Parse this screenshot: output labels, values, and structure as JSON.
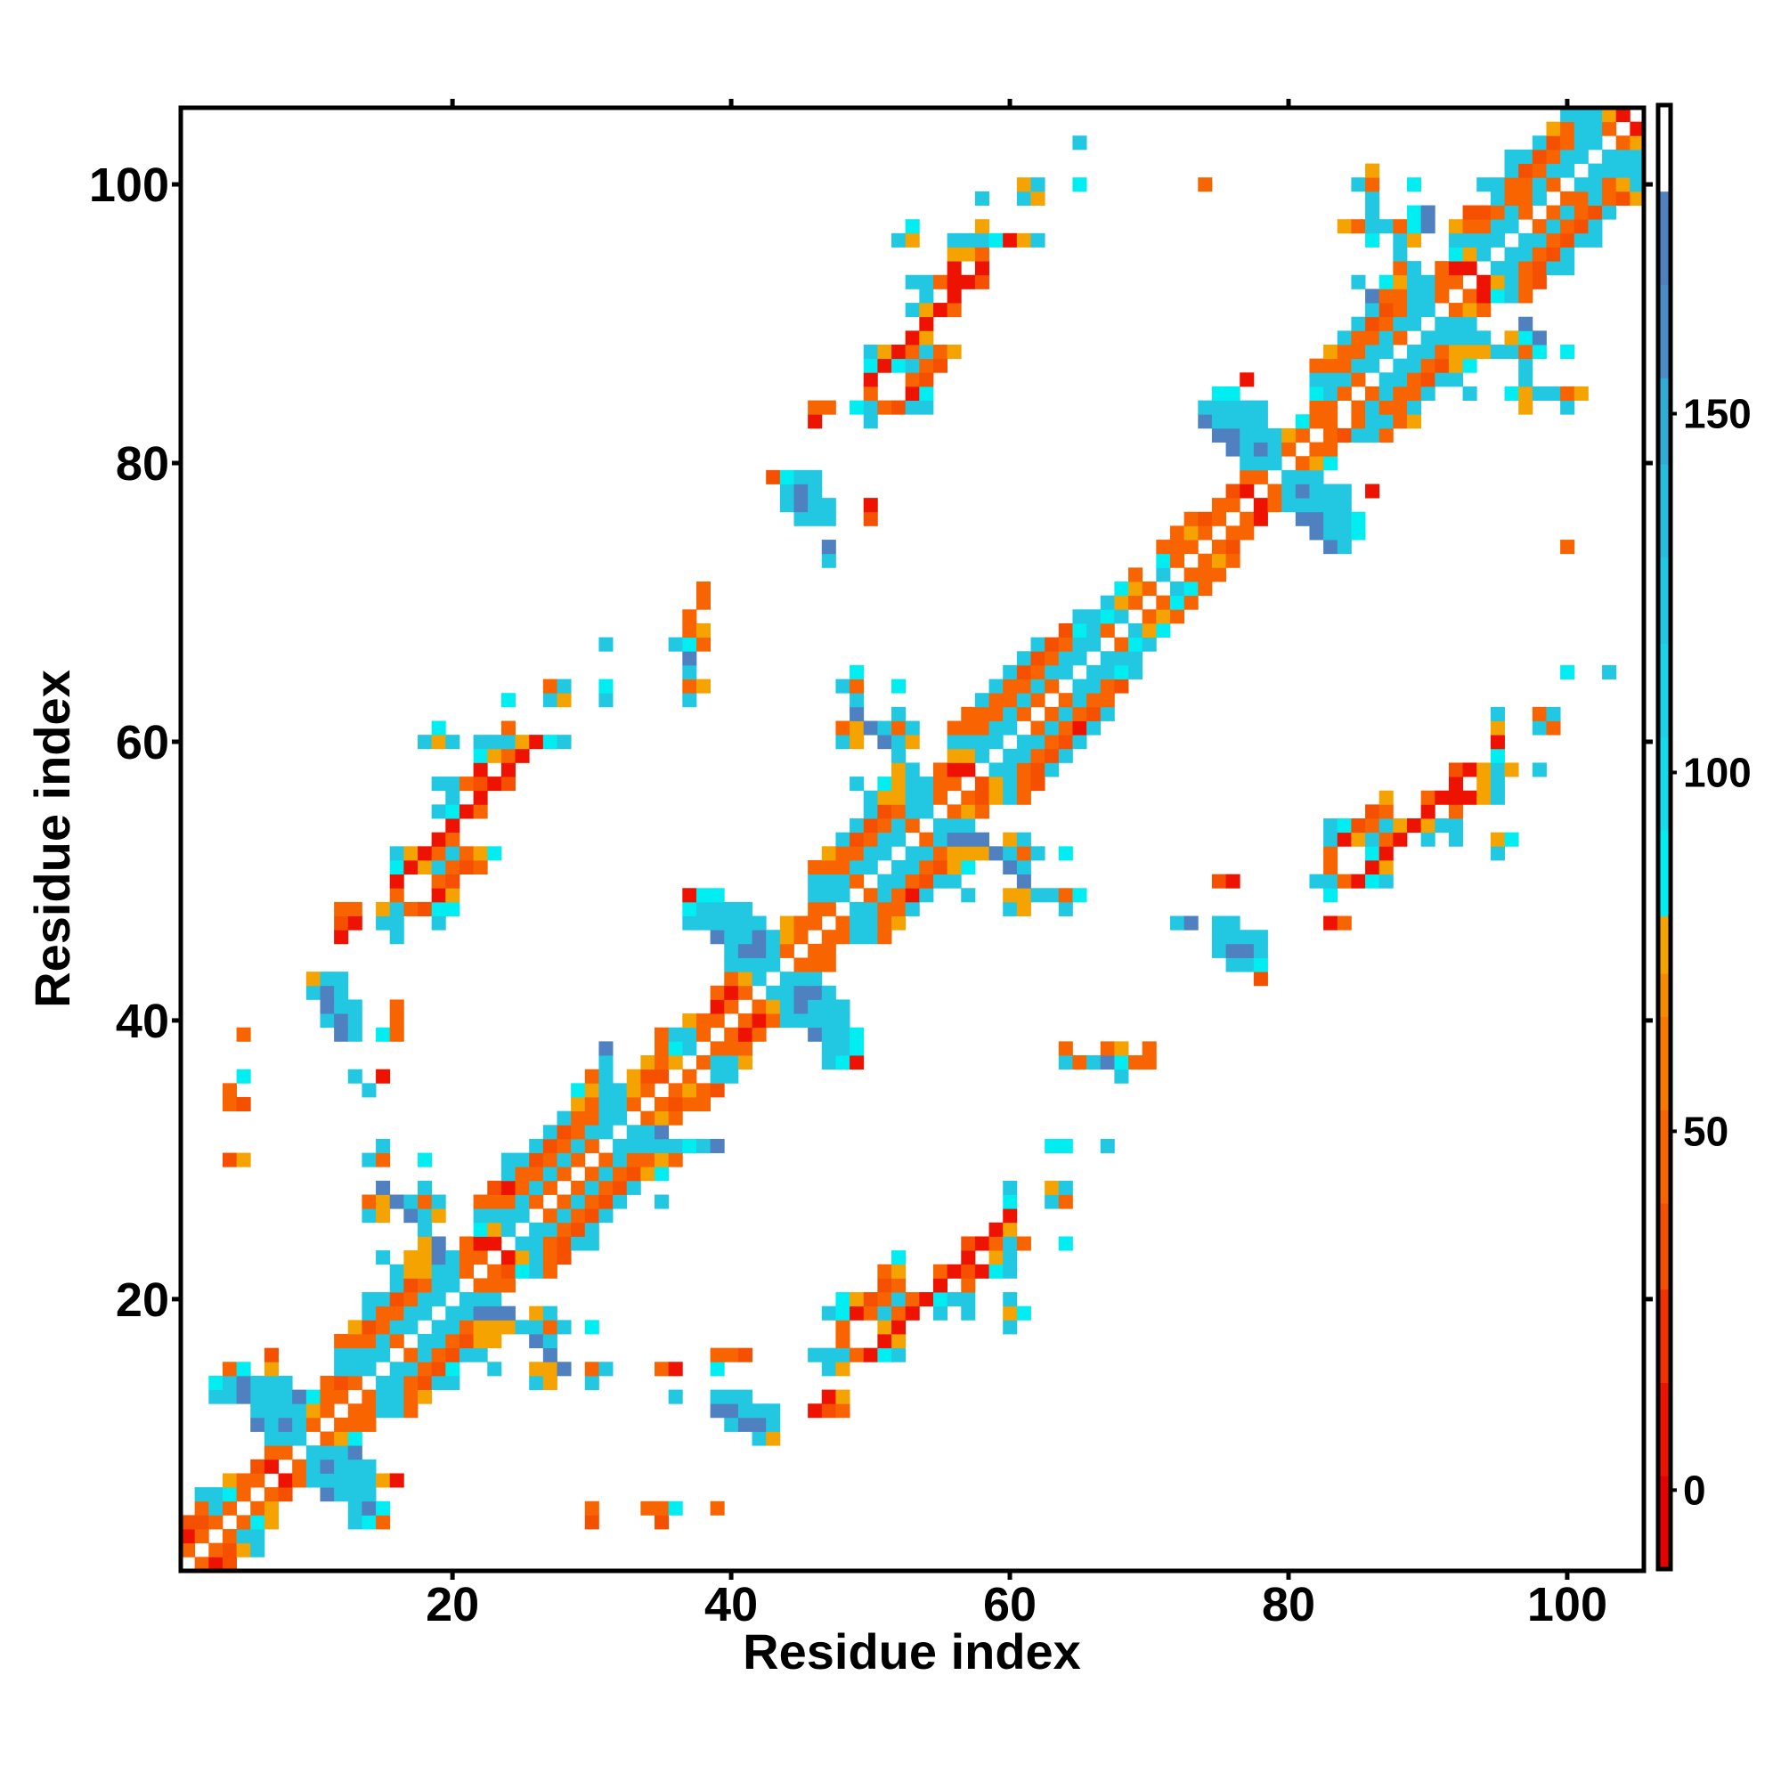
{
  "chart_data": {
    "type": "heatmap",
    "title": "",
    "xlabel": "Residue index",
    "ylabel": "Residue index",
    "xlim": [
      0.5,
      105.5
    ],
    "ylim": [
      0.5,
      105.5
    ],
    "n": 105,
    "grid": false,
    "x_ticks": [
      20,
      40,
      60,
      80,
      100
    ],
    "y_ticks": [
      20,
      40,
      60,
      80,
      100
    ],
    "colorbar": {
      "placement": "right",
      "ticks": [
        0,
        50,
        100,
        150
      ],
      "range": [
        -11,
        193
      ],
      "bins": [
        [
          -11,
          "#e60000"
        ],
        [
          2,
          "#ee1200"
        ],
        [
          15,
          "#f23000"
        ],
        [
          28,
          "#f55000"
        ],
        [
          40,
          "#f86400"
        ],
        [
          53,
          "#f87800"
        ],
        [
          66,
          "#f58c00"
        ],
        [
          72,
          "#f5a300"
        ],
        [
          80,
          "#00eef2"
        ],
        [
          92,
          "#14dcea"
        ],
        [
          105,
          "#1cd2e6"
        ],
        [
          118,
          "#22c8e2"
        ],
        [
          130,
          "#28bcde"
        ],
        [
          143,
          "#30acd6"
        ],
        [
          155,
          "#4a8cc6"
        ],
        [
          168,
          "#4f80bf"
        ],
        [
          181,
          "#ffffff"
        ]
      ]
    },
    "value_codes": {
      "r": 5,
      "R": 30,
      "o": 48,
      "y": 75,
      "c": 85,
      "b": 120,
      "s": 172
    },
    "cells_format": "[row, start_column, codes] - each code char is one consecutive column, '.' = empty",
    "cells": [
      [
        1,
        2,
        "orR"
      ],
      [
        2,
        1,
        "o.oRyb"
      ],
      [
        3,
        1,
        "ro.obb"
      ],
      [
        4,
        1,
        "RRo.ocy"
      ],
      [
        4,
        13,
        "bco"
      ],
      [
        4,
        30,
        "R"
      ],
      [
        4,
        35,
        "R"
      ],
      [
        5,
        2,
        "obo.oy"
      ],
      [
        5,
        13,
        "bsc"
      ],
      [
        5,
        30,
        "o"
      ],
      [
        5,
        34,
        "ooc"
      ],
      [
        5,
        39,
        "o"
      ],
      [
        6,
        2,
        "bbco.oR"
      ],
      [
        6,
        11,
        "sbbb"
      ],
      [
        7,
        4,
        "yoo.robbbbbyr"
      ],
      [
        8,
        6,
        "Rr.obsbbb"
      ],
      [
        9,
        7,
        "oo.bbbs"
      ],
      [
        10,
        7,
        "bbb.oyc"
      ],
      [
        10,
        42,
        "by"
      ],
      [
        11,
        6,
        "sbsbo.ooo"
      ],
      [
        11,
        40,
        "bssb"
      ],
      [
        12,
        6,
        "bbbbyo.oobbo"
      ],
      [
        12,
        39,
        "ssbbb"
      ],
      [
        12,
        46,
        "rRo"
      ],
      [
        13,
        3,
        "bbsbbbscoo.obboy"
      ],
      [
        13,
        36,
        "b"
      ],
      [
        13,
        39,
        "bbb"
      ],
      [
        13,
        47,
        "ry"
      ],
      [
        14,
        3,
        "cbsbbb..oRo.bboRbb"
      ],
      [
        14,
        26,
        "by"
      ],
      [
        14,
        30,
        "b"
      ],
      [
        15,
        4,
        "oc.y"
      ],
      [
        15,
        12,
        "bbb.bboRc"
      ],
      [
        15,
        23,
        "b"
      ],
      [
        15,
        26,
        "yys.ob"
      ],
      [
        15,
        35,
        "or"
      ],
      [
        15,
        39,
        "c"
      ],
      [
        15,
        47,
        "by"
      ],
      [
        16,
        7,
        "R"
      ],
      [
        16,
        12,
        "bbbb.oboRbb"
      ],
      [
        16,
        27,
        "s"
      ],
      [
        16,
        39,
        "ooR"
      ],
      [
        16,
        46,
        "bbborcb"
      ],
      [
        17,
        12,
        "ooobo.bboRyy"
      ],
      [
        17,
        26,
        "sb"
      ],
      [
        17,
        48,
        "o..ry"
      ],
      [
        18,
        13,
        "yRobb.bboyyybbob"
      ],
      [
        18,
        30,
        "c"
      ],
      [
        18,
        48,
        "o..yr"
      ],
      [
        18,
        60,
        "b"
      ],
      [
        19,
        14,
        "boobb.bbsss.yb"
      ],
      [
        19,
        47,
        "bcrobor.b.b"
      ],
      [
        19,
        60,
        "yc"
      ],
      [
        20,
        14,
        "bbRobb.bbb"
      ],
      [
        20,
        48,
        "cyRoborcbb"
      ],
      [
        20,
        60,
        "b"
      ],
      [
        21,
        16,
        "bRobb.ooo"
      ],
      [
        21,
        51,
        "Ro..r.o"
      ],
      [
        22,
        16,
        "byybbo.oRcbo"
      ],
      [
        22,
        51,
        "oy..orRrcb"
      ],
      [
        23,
        15,
        "b.yysboo.ryboR"
      ],
      [
        23,
        52,
        "c"
      ],
      [
        23,
        57,
        "r.yb"
      ],
      [
        24,
        18,
        "ys.orr.bboRbb"
      ],
      [
        24,
        57,
        "Rrobo"
      ],
      [
        24,
        64,
        "c"
      ],
      [
        25,
        18,
        "b...cyb.bboRb"
      ],
      [
        25,
        59,
        "ry"
      ],
      [
        26,
        14,
        "by.sby..bbbb.oboRb"
      ],
      [
        26,
        60,
        "r"
      ],
      [
        27,
        14,
        "oysbob..ooobo.oboRb..b"
      ],
      [
        27,
        60,
        "c..bo"
      ],
      [
        28,
        15,
        "s..b....Rrobo.oboRb"
      ],
      [
        28,
        60,
        "b..yb"
      ],
      [
        29,
        24,
        "boobo.oboRyc"
      ],
      [
        30,
        4,
        "Ry"
      ],
      [
        30,
        14,
        "bo..c"
      ],
      [
        30,
        24,
        "bbRobo.obooyo"
      ],
      [
        31,
        15,
        "b"
      ],
      [
        31,
        26,
        "bRobo.bbbbbcbs"
      ],
      [
        31,
        63,
        "cc..b"
      ],
      [
        32,
        27,
        "bRobb.bbs"
      ],
      [
        33,
        28,
        "boobb.oyo"
      ],
      [
        34,
        4,
        "oR"
      ],
      [
        34,
        29,
        "yobbo.oRoo"
      ],
      [
        35,
        4,
        "o"
      ],
      [
        35,
        14,
        "b"
      ],
      [
        35,
        29,
        "cybbyo.oyoR"
      ],
      [
        36,
        5,
        "c"
      ],
      [
        36,
        13,
        "b.r"
      ],
      [
        36,
        30,
        "ob.yRR.o.bb"
      ],
      [
        36,
        68,
        "b"
      ],
      [
        37,
        31,
        "b..yoy.obby"
      ],
      [
        37,
        47,
        "bcr"
      ],
      [
        37,
        64,
        "bobscoo"
      ],
      [
        38,
        31,
        "s...ocb.ooo"
      ],
      [
        38,
        47,
        "bbc"
      ],
      [
        38,
        64,
        "o..oy.o"
      ],
      [
        39,
        5,
        "o"
      ],
      [
        39,
        12,
        "sb.co"
      ],
      [
        39,
        35,
        "obbo.oro"
      ],
      [
        39,
        46,
        "sbbc"
      ],
      [
        40,
        11,
        "bsb..o"
      ],
      [
        40,
        37,
        "yoo.orobbbbb"
      ],
      [
        41,
        11,
        "sbb..o"
      ],
      [
        41,
        39,
        "ro.oybsbbb"
      ],
      [
        42,
        10,
        "bsb"
      ],
      [
        42,
        39,
        "oro.bbssb"
      ],
      [
        43,
        10,
        "ybb"
      ],
      [
        43,
        40,
        "oyb.bbb"
      ],
      [
        43,
        78,
        "R"
      ],
      [
        44,
        40,
        "bbbb.ooo"
      ],
      [
        44,
        76,
        "bbc"
      ],
      [
        45,
        40,
        "bssbo.oo"
      ],
      [
        45,
        75,
        "bssb"
      ],
      [
        46,
        12,
        "r...b"
      ],
      [
        46,
        39,
        "sbbsbyo.oobbo"
      ],
      [
        46,
        75,
        "bbbb"
      ],
      [
        47,
        12,
        "Rr.bb..b"
      ],
      [
        47,
        37,
        "bbbbbb.yoo.obboy"
      ],
      [
        47,
        72,
        "bs.bb"
      ],
      [
        47,
        83,
        "ro"
      ],
      [
        48,
        12,
        "oo.yboRcc"
      ],
      [
        48,
        37,
        "cbbbb....oo.bboob"
      ],
      [
        48,
        60,
        "by..b"
      ],
      [
        49,
        16,
        "o..ry"
      ],
      [
        49,
        37,
        "rcc"
      ],
      [
        49,
        46,
        "bbb.oborb..b..yybboc"
      ],
      [
        49,
        83,
        "c"
      ],
      [
        50,
        16,
        "r..oR"
      ],
      [
        50,
        46,
        "bbbo.bboRbb....s"
      ],
      [
        50,
        75,
        "Rr.....bborcb"
      ],
      [
        51,
        16,
        "cryboRo"
      ],
      [
        51,
        46,
        "ooobb.bboRyc..sb"
      ],
      [
        51,
        83,
        "o..ry"
      ],
      [
        52,
        16,
        "byroboyc"
      ],
      [
        52,
        47,
        "yoobb.bboyyysbob.c"
      ],
      [
        52,
        83,
        "o..cr"
      ],
      [
        52,
        95,
        "b"
      ],
      [
        53,
        19,
        "ro"
      ],
      [
        53,
        48,
        "bRobb.obsss.yb"
      ],
      [
        53,
        83,
        "brybor.b.b..yc"
      ],
      [
        54,
        20,
        "r"
      ],
      [
        54,
        49,
        "bRobo.bbb"
      ],
      [
        54,
        83,
        "bcRobyrybb"
      ],
      [
        55,
        19,
        "bcro"
      ],
      [
        55,
        50,
        "bRobb.oyo"
      ],
      [
        55,
        86,
        "Ro..r.o"
      ],
      [
        56,
        20,
        "b.r"
      ],
      [
        56,
        50,
        "byybbo.oRybo"
      ],
      [
        56,
        87,
        "y..orrryb"
      ],
      [
        57,
        19,
        "bboRrR"
      ],
      [
        57,
        49,
        "b.cybboo.RyboR"
      ],
      [
        57,
        92,
        "r.yb"
      ],
      [
        58,
        22,
        "r.r"
      ],
      [
        58,
        52,
        "yb.orr.bboRb"
      ],
      [
        58,
        92,
        "Rryby.b"
      ],
      [
        59,
        22,
        "cyor"
      ],
      [
        59,
        52,
        "b...yyb.bboRb"
      ],
      [
        59,
        95,
        "c"
      ],
      [
        60,
        18,
        "byb.bbbyrcb"
      ],
      [
        60,
        48,
        "by.sby..bbbb.bboRb"
      ],
      [
        60,
        95,
        "r"
      ],
      [
        61,
        19,
        "c....o"
      ],
      [
        61,
        48,
        "oysbob..ooobb.oborb"
      ],
      [
        61,
        95,
        "y..bo"
      ],
      [
        62,
        49,
        "s..b....ooobo.oboRb"
      ],
      [
        62,
        95,
        "b..ob"
      ],
      [
        63,
        24,
        "c..by..b"
      ],
      [
        63,
        37,
        "b"
      ],
      [
        63,
        49,
        "b"
      ],
      [
        63,
        58,
        "boobo.oboo"
      ],
      [
        64,
        27,
        "ob..c"
      ],
      [
        64,
        37,
        "oy"
      ],
      [
        64,
        48,
        "bo..c"
      ],
      [
        64,
        59,
        "boobo.bboR"
      ],
      [
        65,
        37,
        "b"
      ],
      [
        65,
        49,
        "c"
      ],
      [
        65,
        60,
        "bRobb.bbcb"
      ],
      [
        65,
        100,
        "c..b"
      ],
      [
        66,
        37,
        "s"
      ],
      [
        66,
        61,
        "bRobb.bbb"
      ],
      [
        67,
        31,
        "b"
      ],
      [
        67,
        36,
        "bco"
      ],
      [
        67,
        62,
        "bRobb.ocb"
      ],
      [
        68,
        37,
        "oy"
      ],
      [
        68,
        64,
        "Rcbo.byc"
      ],
      [
        69,
        37,
        "o"
      ],
      [
        69,
        65,
        "bbcb.oyo"
      ],
      [
        70,
        38,
        "o"
      ],
      [
        70,
        67,
        "byo.oco"
      ],
      [
        71,
        38,
        "o"
      ],
      [
        71,
        68,
        "cyo.bco"
      ],
      [
        72,
        69,
        "o.b.ooo"
      ],
      [
        73,
        47,
        "b"
      ],
      [
        73,
        71,
        "co.oyo"
      ],
      [
        74,
        47,
        "s"
      ],
      [
        74,
        71,
        "ooo.oR"
      ],
      [
        74,
        83,
        "sb"
      ],
      [
        74,
        100,
        "o"
      ],
      [
        75,
        72,
        "oyo.oo"
      ],
      [
        75,
        82,
        "sbbc"
      ],
      [
        76,
        45,
        "bbb..R"
      ],
      [
        76,
        73,
        "oRo.or"
      ],
      [
        76,
        81,
        "ssbbc"
      ],
      [
        77,
        44,
        "bsbb..r"
      ],
      [
        77,
        75,
        "oo.robbbbb"
      ],
      [
        78,
        44,
        "bsb"
      ],
      [
        78,
        76,
        "Rr.obsbbb"
      ],
      [
        78,
        86,
        "r"
      ],
      [
        79,
        43,
        "Rcbb"
      ],
      [
        79,
        77,
        "oo.bbb"
      ],
      [
        80,
        77,
        "bbb.oyc"
      ],
      [
        81,
        76,
        "sbsbo.oo"
      ],
      [
        82,
        75,
        "ssbbbyo.oRbbo"
      ],
      [
        83,
        46,
        "r...b"
      ],
      [
        83,
        74,
        "sbbbb..coo.obboy"
      ],
      [
        84,
        46,
        "oo.cboRbb"
      ],
      [
        84,
        74,
        "bbbbb...oo.oboob"
      ],
      [
        84,
        97,
        "y..b"
      ],
      [
        85,
        50,
        "o..rc"
      ],
      [
        85,
        75,
        "cc.....cbo.oboob"
      ],
      [
        85,
        93,
        "b..cybboy"
      ],
      [
        86,
        50,
        "r..oR"
      ],
      [
        86,
        77,
        "r"
      ],
      [
        86,
        82,
        "bbbo.bboRbb"
      ],
      [
        86,
        97,
        "b"
      ],
      [
        87,
        50,
        "crcboR"
      ],
      [
        87,
        82,
        "ooobb.bboRyc"
      ],
      [
        87,
        97,
        "b"
      ],
      [
        88,
        50,
        "byroboy"
      ],
      [
        88,
        83,
        "yoobb.bboyyybboc.c"
      ],
      [
        89,
        53,
        "ry"
      ],
      [
        89,
        84,
        "boobo.bbbbb.ycs"
      ],
      [
        90,
        54,
        "r"
      ],
      [
        90,
        85,
        "bRobb.bbb...s"
      ],
      [
        91,
        53,
        "byro"
      ],
      [
        91,
        86,
        "bRobb.oyo"
      ],
      [
        92,
        54,
        "b.r"
      ],
      [
        92,
        86,
        "soobbo.orcbo"
      ],
      [
        93,
        53,
        "bborrR"
      ],
      [
        93,
        85,
        "b.cybboo.ryboR"
      ],
      [
        94,
        56,
        "r.r"
      ],
      [
        94,
        88,
        "ob.orr.bboRbb"
      ],
      [
        95,
        56,
        "yyo"
      ],
      [
        95,
        88,
        "b...cyb.bboRb"
      ],
      [
        96,
        52,
        "by..bbbcryb"
      ],
      [
        96,
        86,
        "c.by..bbbb.bboRbb"
      ],
      [
        97,
        53,
        "c....y"
      ],
      [
        97,
        84,
        "yobbocs.yoobb.oboRb"
      ],
      [
        98,
        86,
        "b..cs..RRobo.oboRb"
      ],
      [
        99,
        58,
        "b..by"
      ],
      [
        99,
        86,
        "b"
      ],
      [
        99,
        95,
        "boob.ooboRy"
      ],
      [
        100,
        61,
        "yb..c"
      ],
      [
        100,
        74,
        "o"
      ],
      [
        100,
        85,
        "bo..c....bboobo.bboyb"
      ],
      [
        101,
        86,
        "y"
      ],
      [
        101,
        96,
        "bRobb.bbbb"
      ],
      [
        102,
        96,
        "bbRobb.bbb"
      ],
      [
        103,
        65,
        "b"
      ],
      [
        103,
        98,
        "bRobb.oy"
      ],
      [
        104,
        99,
        "yobbo.r"
      ],
      [
        105,
        100,
        "bbbyr"
      ]
    ]
  }
}
